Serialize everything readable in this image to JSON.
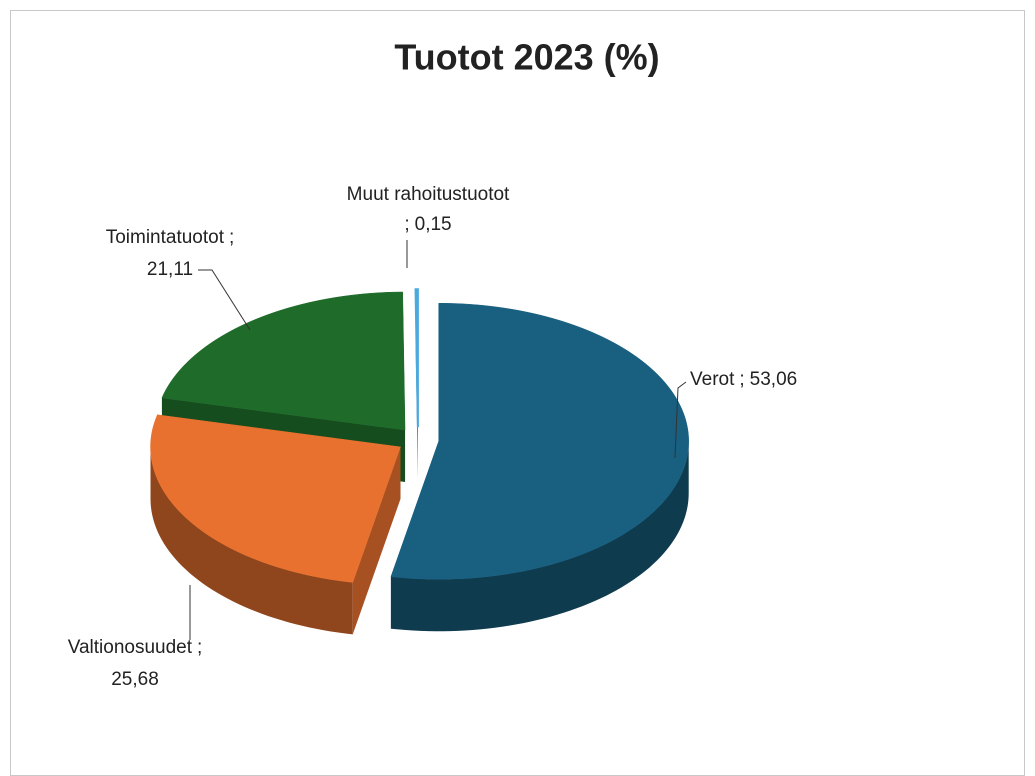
{
  "chart_data": {
    "type": "pie",
    "title": "Tuotot 2023 (%)",
    "categories": [
      "Verot",
      "Valtionosuudet",
      "Toimintatuotot",
      "Muut rahoitustuotot"
    ],
    "values": [
      53.06,
      25.68,
      21.11,
      0.15
    ],
    "value_labels": [
      "53,06",
      "25,68",
      "21,11",
      "0,15"
    ],
    "label_separator": ";",
    "colors": [
      "#185f80",
      "#e8712f",
      "#1e6b2a",
      "#4ba9dc"
    ]
  }
}
